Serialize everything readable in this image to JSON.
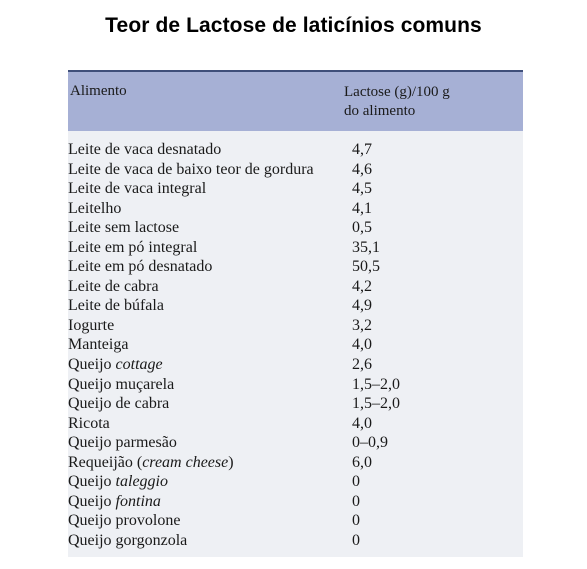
{
  "title": "Teor de Lactose de laticínios comuns",
  "table": {
    "header": {
      "col1": "Alimento",
      "col2_line1": "Lactose (g)/100 g",
      "col2_line2": "do alimento"
    },
    "rows": [
      {
        "pre": "Leite de vaca desnatado",
        "em": "",
        "post": "",
        "value": "4,7"
      },
      {
        "pre": "Leite de vaca de baixo teor de gordura",
        "em": "",
        "post": "",
        "value": "4,6"
      },
      {
        "pre": "Leite de vaca integral",
        "em": "",
        "post": "",
        "value": "4,5"
      },
      {
        "pre": "Leitelho",
        "em": "",
        "post": "",
        "value": "4,1"
      },
      {
        "pre": "Leite sem lactose",
        "em": "",
        "post": "",
        "value": "0,5"
      },
      {
        "pre": "Leite em pó integral",
        "em": "",
        "post": "",
        "value": "35,1"
      },
      {
        "pre": "Leite em pó desnatado",
        "em": "",
        "post": "",
        "value": "50,5"
      },
      {
        "pre": "Leite de cabra",
        "em": "",
        "post": "",
        "value": "4,2"
      },
      {
        "pre": "Leite de búfala",
        "em": "",
        "post": "",
        "value": "4,9"
      },
      {
        "pre": "Iogurte",
        "em": "",
        "post": "",
        "value": "3,2"
      },
      {
        "pre": "Manteiga",
        "em": "",
        "post": "",
        "value": "4,0"
      },
      {
        "pre": "Queijo ",
        "em": "cottage",
        "post": "",
        "value": "2,6"
      },
      {
        "pre": "Queijo muçarela",
        "em": "",
        "post": "",
        "value": "1,5–2,0"
      },
      {
        "pre": "Queijo de cabra",
        "em": "",
        "post": "",
        "value": "1,5–2,0"
      },
      {
        "pre": "Ricota",
        "em": "",
        "post": "",
        "value": "4,0"
      },
      {
        "pre": "Queijo parmesão",
        "em": "",
        "post": "",
        "value": "0–0,9"
      },
      {
        "pre": "Requeijão (",
        "em": "cream cheese",
        "post": ")",
        "value": "6,0"
      },
      {
        "pre": "Queijo ",
        "em": "taleggio",
        "post": "",
        "value": "0"
      },
      {
        "pre": "Queijo ",
        "em": "fontina",
        "post": "",
        "value": "0"
      },
      {
        "pre": "Queijo provolone",
        "em": "",
        "post": "",
        "value": "0"
      },
      {
        "pre": "Queijo gorgonzola",
        "em": "",
        "post": "",
        "value": "0"
      }
    ]
  }
}
